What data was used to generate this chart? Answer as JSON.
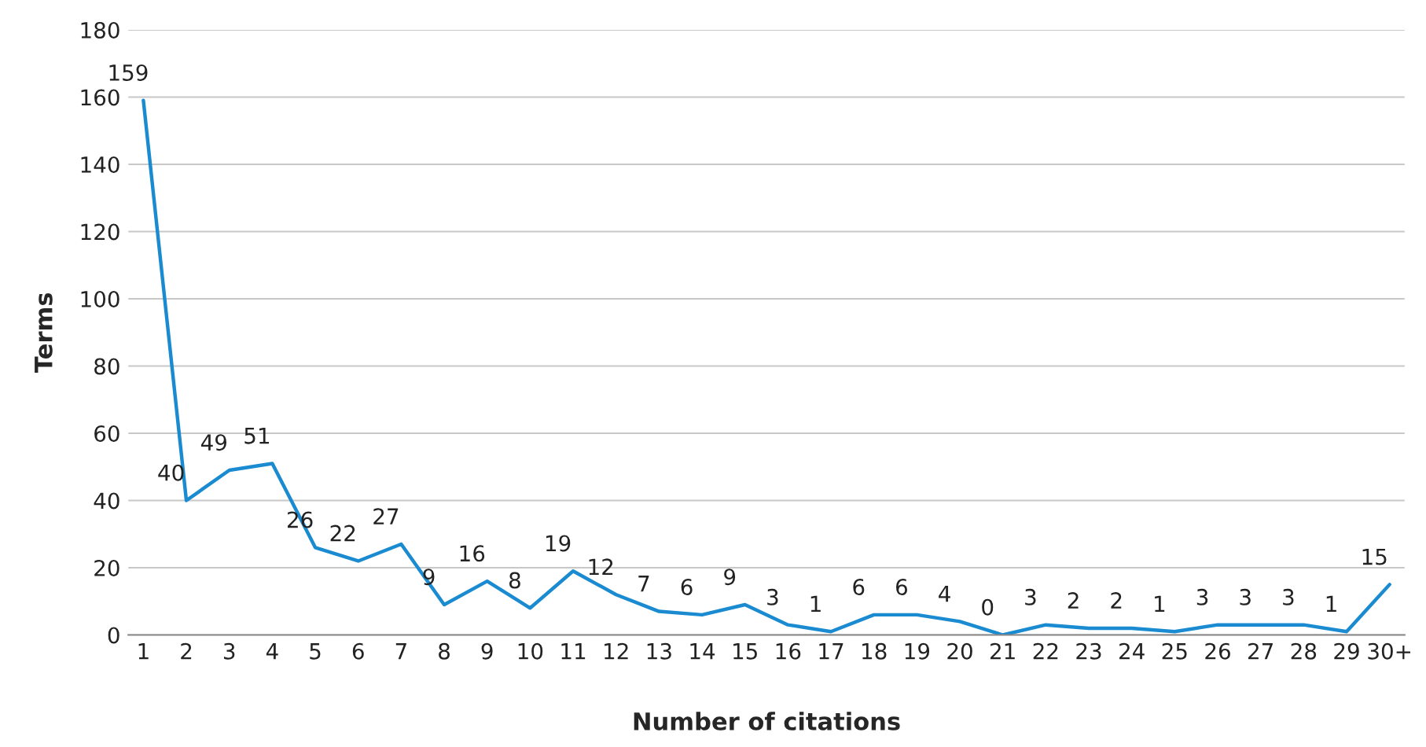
{
  "chart_data": {
    "type": "line",
    "xlabel": "Number of citations",
    "ylabel": "Terms",
    "categories": [
      "1",
      "2",
      "3",
      "4",
      "5",
      "6",
      "7",
      "8",
      "9",
      "10",
      "11",
      "12",
      "13",
      "14",
      "15",
      "16",
      "17",
      "18",
      "19",
      "20",
      "21",
      "22",
      "23",
      "24",
      "25",
      "26",
      "27",
      "28",
      "29",
      "30+"
    ],
    "series": [
      {
        "color": "#1a8bd0",
        "values": [
          159,
          40,
          49,
          51,
          26,
          22,
          27,
          9,
          16,
          8,
          19,
          12,
          7,
          6,
          9,
          3,
          1,
          6,
          6,
          4,
          0,
          3,
          2,
          2,
          1,
          3,
          3,
          3,
          1,
          15
        ]
      }
    ],
    "ylim": [
      0,
      180
    ],
    "yticks": [
      0,
      20,
      40,
      60,
      80,
      100,
      120,
      140,
      160,
      180
    ],
    "grid": "y",
    "data_labels": true,
    "marker": "none",
    "line_style": "solid"
  }
}
